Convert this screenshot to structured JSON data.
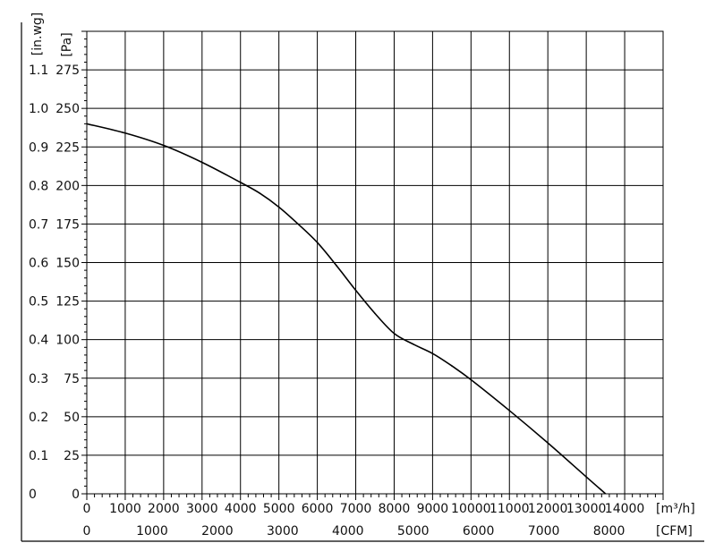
{
  "chart_data": {
    "type": "line",
    "title": "",
    "ylabel_primary": "[Pa]",
    "ylabel_secondary": "[in.wg]",
    "xlabel_primary": "[m³/h]",
    "xlabel_secondary": "[CFM]",
    "x_primary_ticks": [
      0,
      1000,
      2000,
      3000,
      4000,
      5000,
      6000,
      7000,
      8000,
      9000,
      10000,
      11000,
      12000,
      13000,
      14000
    ],
    "x_secondary_ticks": [
      0,
      1000,
      2000,
      3000,
      4000,
      5000,
      6000,
      7000,
      8000
    ],
    "y_primary_ticks": [
      0,
      25,
      50,
      75,
      100,
      125,
      150,
      175,
      200,
      225,
      250,
      275
    ],
    "y_secondary_ticks": [
      "0",
      "0.1",
      "0.2",
      "0.3",
      "0.4",
      "0.5",
      "0.6",
      "0.7",
      "0.8",
      "0.9",
      "1.0",
      "1.1"
    ],
    "xlim": [
      0,
      15000
    ],
    "ylim": [
      0,
      300
    ],
    "grid": true,
    "series": [
      {
        "x": [
          0,
          1000,
          2000,
          3000,
          4000,
          4500,
          5000,
          5500,
          6000,
          6500,
          7000,
          7500,
          8000,
          8500,
          9000,
          9500,
          10000,
          11000,
          12000,
          13000,
          14000,
          14450
        ],
        "values": [
          240,
          234,
          226,
          215,
          202,
          195,
          186,
          175,
          163,
          148,
          132,
          117,
          104,
          97,
          91,
          83,
          74,
          54,
          33,
          11,
          -11,
          -22
        ]
      }
    ]
  }
}
